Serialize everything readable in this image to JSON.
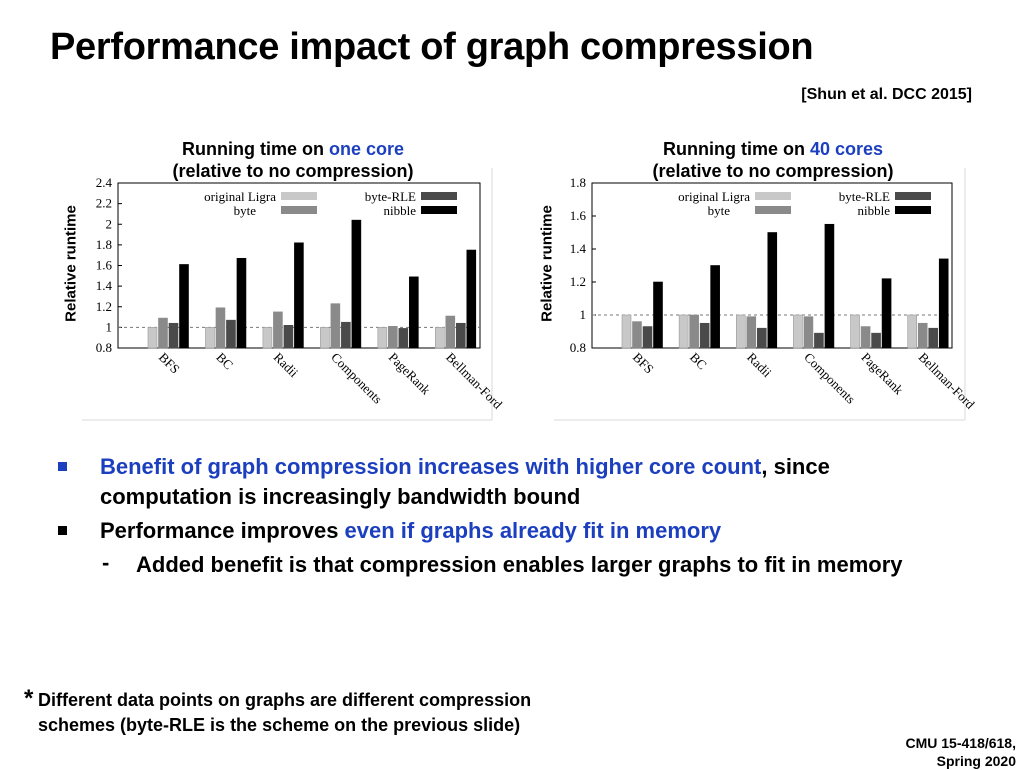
{
  "slide": {
    "title": "Performance impact of graph compression",
    "citation": "[Shun et al. DCC 2015]",
    "bullets": [
      {
        "blue": "Benefit of graph compression increases with higher core count",
        "rest": ", since computation is increasingly bandwidth bound"
      },
      {
        "pre": "Performance improves ",
        "blue": "even if graphs already fit in memory"
      }
    ],
    "dash": "-",
    "sub_bullet": "Added benefit is that compression enables larger graphs to fit in memory",
    "footnote_star": "*",
    "footnote": "Different data points on graphs are different compression schemes (byte-RLE is the scheme on the previous slide)",
    "course_line1": "CMU 15-418/618,",
    "course_line2": "Spring 2020"
  },
  "colors": {
    "highlight": "#1c3fbf",
    "series": [
      "#c8c8c8",
      "#8a8a8a",
      "#4a4a4a",
      "#000000"
    ]
  },
  "chart_data": [
    {
      "type": "bar",
      "title_prefix": "Running time on ",
      "title_highlight": "one core",
      "title_line2": "(relative to no compression)",
      "ylabel": "Relative runtime",
      "categories": [
        "BFS",
        "BC",
        "Radii",
        "Components",
        "PageRank",
        "Bellman-Ford"
      ],
      "ylim": [
        0.8,
        2.4
      ],
      "yticks": [
        "0.8",
        "1",
        "1.2",
        "1.4",
        "1.6",
        "1.8",
        "2",
        "2.2",
        "2.4"
      ],
      "reference_line": 1,
      "legend": "top",
      "series": [
        {
          "name": "original Ligra",
          "values": [
            1.0,
            1.0,
            1.0,
            1.0,
            1.0,
            1.0
          ]
        },
        {
          "name": "byte",
          "values": [
            1.09,
            1.19,
            1.15,
            1.23,
            1.01,
            1.11
          ]
        },
        {
          "name": "byte-RLE",
          "values": [
            1.04,
            1.07,
            1.02,
            1.05,
            0.99,
            1.04
          ]
        },
        {
          "name": "nibble",
          "values": [
            1.61,
            1.67,
            1.82,
            2.04,
            1.49,
            1.75
          ]
        }
      ]
    },
    {
      "type": "bar",
      "title_prefix": "Running time on ",
      "title_highlight": "40 cores",
      "title_line2": "(relative to no compression)",
      "ylabel": "Relative runtime",
      "categories": [
        "BFS",
        "BC",
        "Radii",
        "Components",
        "PageRank",
        "Bellman-Ford"
      ],
      "ylim": [
        0.8,
        1.8
      ],
      "yticks": [
        "0.8",
        "1",
        "1.2",
        "1.4",
        "1.6",
        "1.8"
      ],
      "reference_line": 1,
      "legend": "top",
      "series": [
        {
          "name": "original Ligra",
          "values": [
            1.0,
            1.0,
            1.0,
            1.0,
            1.0,
            1.0
          ]
        },
        {
          "name": "byte",
          "values": [
            0.96,
            1.0,
            0.99,
            0.99,
            0.93,
            0.95
          ]
        },
        {
          "name": "byte-RLE",
          "values": [
            0.93,
            0.95,
            0.92,
            0.89,
            0.89,
            0.92
          ]
        },
        {
          "name": "nibble",
          "values": [
            1.2,
            1.3,
            1.5,
            1.55,
            1.22,
            1.34
          ]
        }
      ]
    }
  ]
}
